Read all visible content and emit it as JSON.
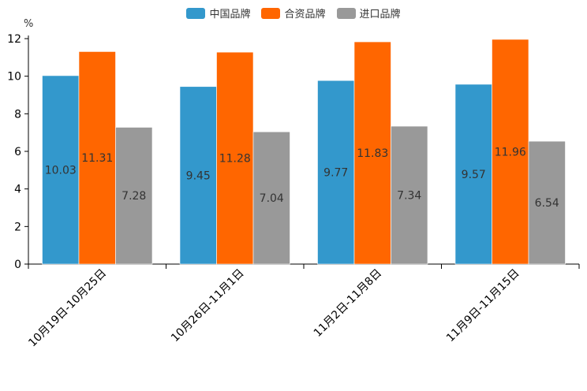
{
  "chart_data": {
    "type": "bar",
    "title": "",
    "ylabel": "%",
    "xlabel": "",
    "ylim": [
      0,
      12
    ],
    "yticks": [
      0,
      2,
      4,
      6,
      8,
      10,
      12
    ],
    "categories": [
      "10月19日-10月25日",
      "10月26日-11月1日",
      "11月2日-11月8日",
      "11月9日-11月15日"
    ],
    "series": [
      {
        "name": "中国品牌",
        "color": "#3398cc",
        "values": [
          10.03,
          9.45,
          9.77,
          9.57
        ]
      },
      {
        "name": "合资品牌",
        "color": "#ff6600",
        "values": [
          11.31,
          11.28,
          11.83,
          11.96
        ]
      },
      {
        "name": "进口品牌",
        "color": "#999999",
        "values": [
          7.28,
          7.04,
          7.34,
          6.54
        ]
      }
    ],
    "legend_position": "top-center",
    "grid": false
  }
}
